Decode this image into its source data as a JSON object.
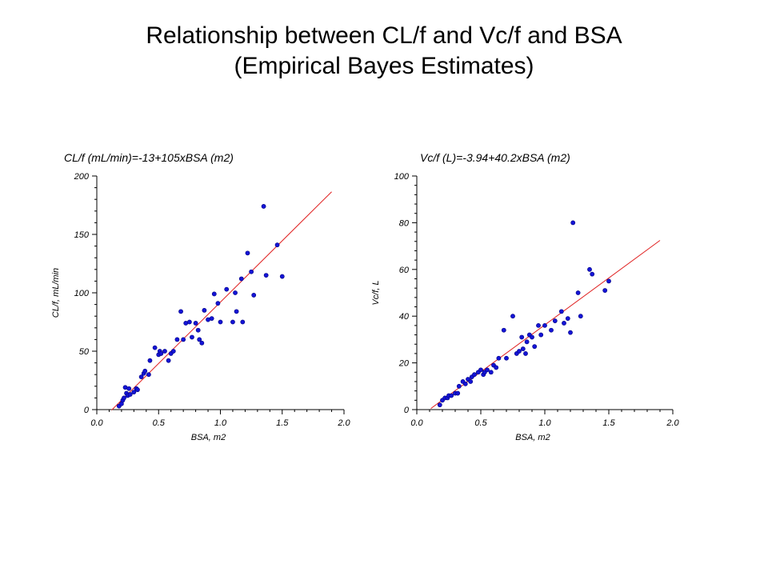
{
  "slide": {
    "title_line1": "Relationship between CL/f and Vc/f and BSA",
    "title_line2": "(Empirical Bayes Estimates)"
  },
  "colors": {
    "points": "#1414d6",
    "point_edge": "#000080",
    "fit_line": "#e02020",
    "axis": "#000000"
  },
  "chart_data": [
    {
      "type": "scatter",
      "title": "CL/f (mL/min)=-13+105xBSA (m2)",
      "xlabel": "BSA, m2",
      "ylabel": "CL/f, mL/min",
      "xlim": [
        0.0,
        2.0
      ],
      "ylim": [
        0,
        200
      ],
      "xticks": [
        "0.0",
        "0.5",
        "1.0",
        "1.5",
        "2.0"
      ],
      "yticks": [
        "0",
        "50",
        "100",
        "150",
        "200"
      ],
      "grid": false,
      "fit": {
        "intercept": -13,
        "slope": 105,
        "x_range": [
          0.12,
          1.9
        ]
      },
      "points": [
        [
          0.18,
          3
        ],
        [
          0.2,
          5
        ],
        [
          0.21,
          8
        ],
        [
          0.22,
          10
        ],
        [
          0.23,
          19
        ],
        [
          0.24,
          14
        ],
        [
          0.25,
          12
        ],
        [
          0.26,
          18
        ],
        [
          0.27,
          13
        ],
        [
          0.3,
          15
        ],
        [
          0.32,
          18
        ],
        [
          0.33,
          17
        ],
        [
          0.36,
          28
        ],
        [
          0.38,
          31
        ],
        [
          0.39,
          33
        ],
        [
          0.42,
          30
        ],
        [
          0.43,
          42
        ],
        [
          0.47,
          53
        ],
        [
          0.5,
          47
        ],
        [
          0.51,
          50
        ],
        [
          0.52,
          48
        ],
        [
          0.55,
          50
        ],
        [
          0.58,
          42
        ],
        [
          0.6,
          48
        ],
        [
          0.62,
          50
        ],
        [
          0.65,
          60
        ],
        [
          0.68,
          84
        ],
        [
          0.7,
          60
        ],
        [
          0.72,
          74
        ],
        [
          0.75,
          75
        ],
        [
          0.77,
          62
        ],
        [
          0.8,
          74
        ],
        [
          0.82,
          68
        ],
        [
          0.83,
          60
        ],
        [
          0.85,
          57
        ],
        [
          0.87,
          85
        ],
        [
          0.9,
          77
        ],
        [
          0.93,
          78
        ],
        [
          0.95,
          99
        ],
        [
          0.98,
          91
        ],
        [
          1.0,
          75
        ],
        [
          1.05,
          103
        ],
        [
          1.1,
          75
        ],
        [
          1.12,
          100
        ],
        [
          1.13,
          84
        ],
        [
          1.17,
          112
        ],
        [
          1.18,
          75
        ],
        [
          1.22,
          134
        ],
        [
          1.25,
          118
        ],
        [
          1.27,
          98
        ],
        [
          1.35,
          174
        ],
        [
          1.37,
          115
        ],
        [
          1.46,
          141
        ],
        [
          1.5,
          114
        ]
      ]
    },
    {
      "type": "scatter",
      "title": "Vc/f (L)=-3.94+40.2xBSA (m2)",
      "xlabel": "BSA, m2",
      "ylabel": "Vc/f, L",
      "xlim": [
        0.0,
        2.0
      ],
      "ylim": [
        0,
        100
      ],
      "xticks": [
        "0.0",
        "0.5",
        "1.0",
        "1.5",
        "2.0"
      ],
      "yticks": [
        "0",
        "20",
        "40",
        "60",
        "80",
        "100"
      ],
      "grid": false,
      "fit": {
        "intercept": -3.94,
        "slope": 40.2,
        "x_range": [
          0.11,
          1.9
        ]
      },
      "points": [
        [
          0.18,
          2
        ],
        [
          0.2,
          4
        ],
        [
          0.22,
          5
        ],
        [
          0.24,
          5
        ],
        [
          0.25,
          6
        ],
        [
          0.27,
          6
        ],
        [
          0.3,
          7
        ],
        [
          0.32,
          7
        ],
        [
          0.33,
          10
        ],
        [
          0.36,
          12
        ],
        [
          0.38,
          11
        ],
        [
          0.4,
          13
        ],
        [
          0.42,
          12
        ],
        [
          0.43,
          14
        ],
        [
          0.45,
          15
        ],
        [
          0.48,
          16
        ],
        [
          0.5,
          17
        ],
        [
          0.52,
          15
        ],
        [
          0.53,
          16
        ],
        [
          0.55,
          17
        ],
        [
          0.58,
          16
        ],
        [
          0.6,
          19
        ],
        [
          0.62,
          18
        ],
        [
          0.64,
          22
        ],
        [
          0.68,
          34
        ],
        [
          0.7,
          22
        ],
        [
          0.75,
          40
        ],
        [
          0.78,
          24
        ],
        [
          0.8,
          25
        ],
        [
          0.82,
          31
        ],
        [
          0.83,
          26
        ],
        [
          0.85,
          24
        ],
        [
          0.86,
          29
        ],
        [
          0.88,
          32
        ],
        [
          0.9,
          31
        ],
        [
          0.92,
          27
        ],
        [
          0.95,
          36
        ],
        [
          0.97,
          32
        ],
        [
          1.0,
          36
        ],
        [
          1.05,
          34
        ],
        [
          1.08,
          38
        ],
        [
          1.13,
          42
        ],
        [
          1.15,
          37
        ],
        [
          1.18,
          39
        ],
        [
          1.2,
          33
        ],
        [
          1.22,
          80
        ],
        [
          1.26,
          50
        ],
        [
          1.28,
          40
        ],
        [
          1.35,
          60
        ],
        [
          1.37,
          58
        ],
        [
          1.47,
          51
        ],
        [
          1.5,
          55
        ]
      ]
    }
  ]
}
